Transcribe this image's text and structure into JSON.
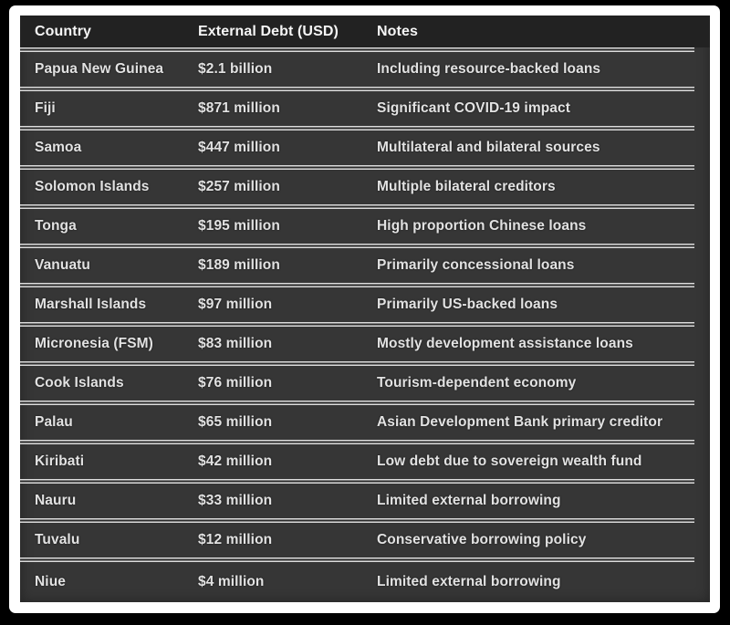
{
  "chart_data": {
    "type": "table",
    "columns": [
      "Country",
      "External Debt (USD)",
      "Notes"
    ],
    "rows": [
      [
        "Papua New Guinea",
        "$2.1 billion",
        "Including resource-backed loans"
      ],
      [
        "Fiji",
        "$871 million",
        "Significant COVID-19 impact"
      ],
      [
        "Samoa",
        "$447 million",
        "Multilateral and bilateral sources"
      ],
      [
        "Solomon Islands",
        "$257 million",
        "Multiple bilateral creditors"
      ],
      [
        "Tonga",
        "$195 million",
        "High proportion Chinese loans"
      ],
      [
        "Vanuatu",
        "$189 million",
        "Primarily concessional loans"
      ],
      [
        "Marshall Islands",
        "$97 million",
        "Primarily US-backed loans"
      ],
      [
        "Micronesia (FSM)",
        "$83 million",
        "Mostly development assistance loans"
      ],
      [
        "Cook Islands",
        "$76 million",
        "Tourism-dependent economy"
      ],
      [
        "Palau",
        "$65 million",
        "Asian Development Bank primary creditor"
      ],
      [
        "Kiribati",
        "$42 million",
        "Low debt due to sovereign wealth fund"
      ],
      [
        "Nauru",
        "$33 million",
        "Limited external borrowing"
      ],
      [
        "Tuvalu",
        "$12 million",
        "Conservative borrowing policy"
      ],
      [
        "Niue",
        "$4 million",
        "Limited external borrowing"
      ]
    ],
    "debt_values_usd_millions": [
      2100,
      871,
      447,
      257,
      195,
      189,
      97,
      83,
      76,
      65,
      42,
      33,
      12,
      4
    ]
  },
  "colors": {
    "frame": "#000000",
    "mat": "#ffffff",
    "header_bg": "#222222",
    "row_bg": "#363636",
    "separator": "#dcdcdc",
    "header_text": "#f5f5f5",
    "row_text": "#e2e2e2"
  }
}
